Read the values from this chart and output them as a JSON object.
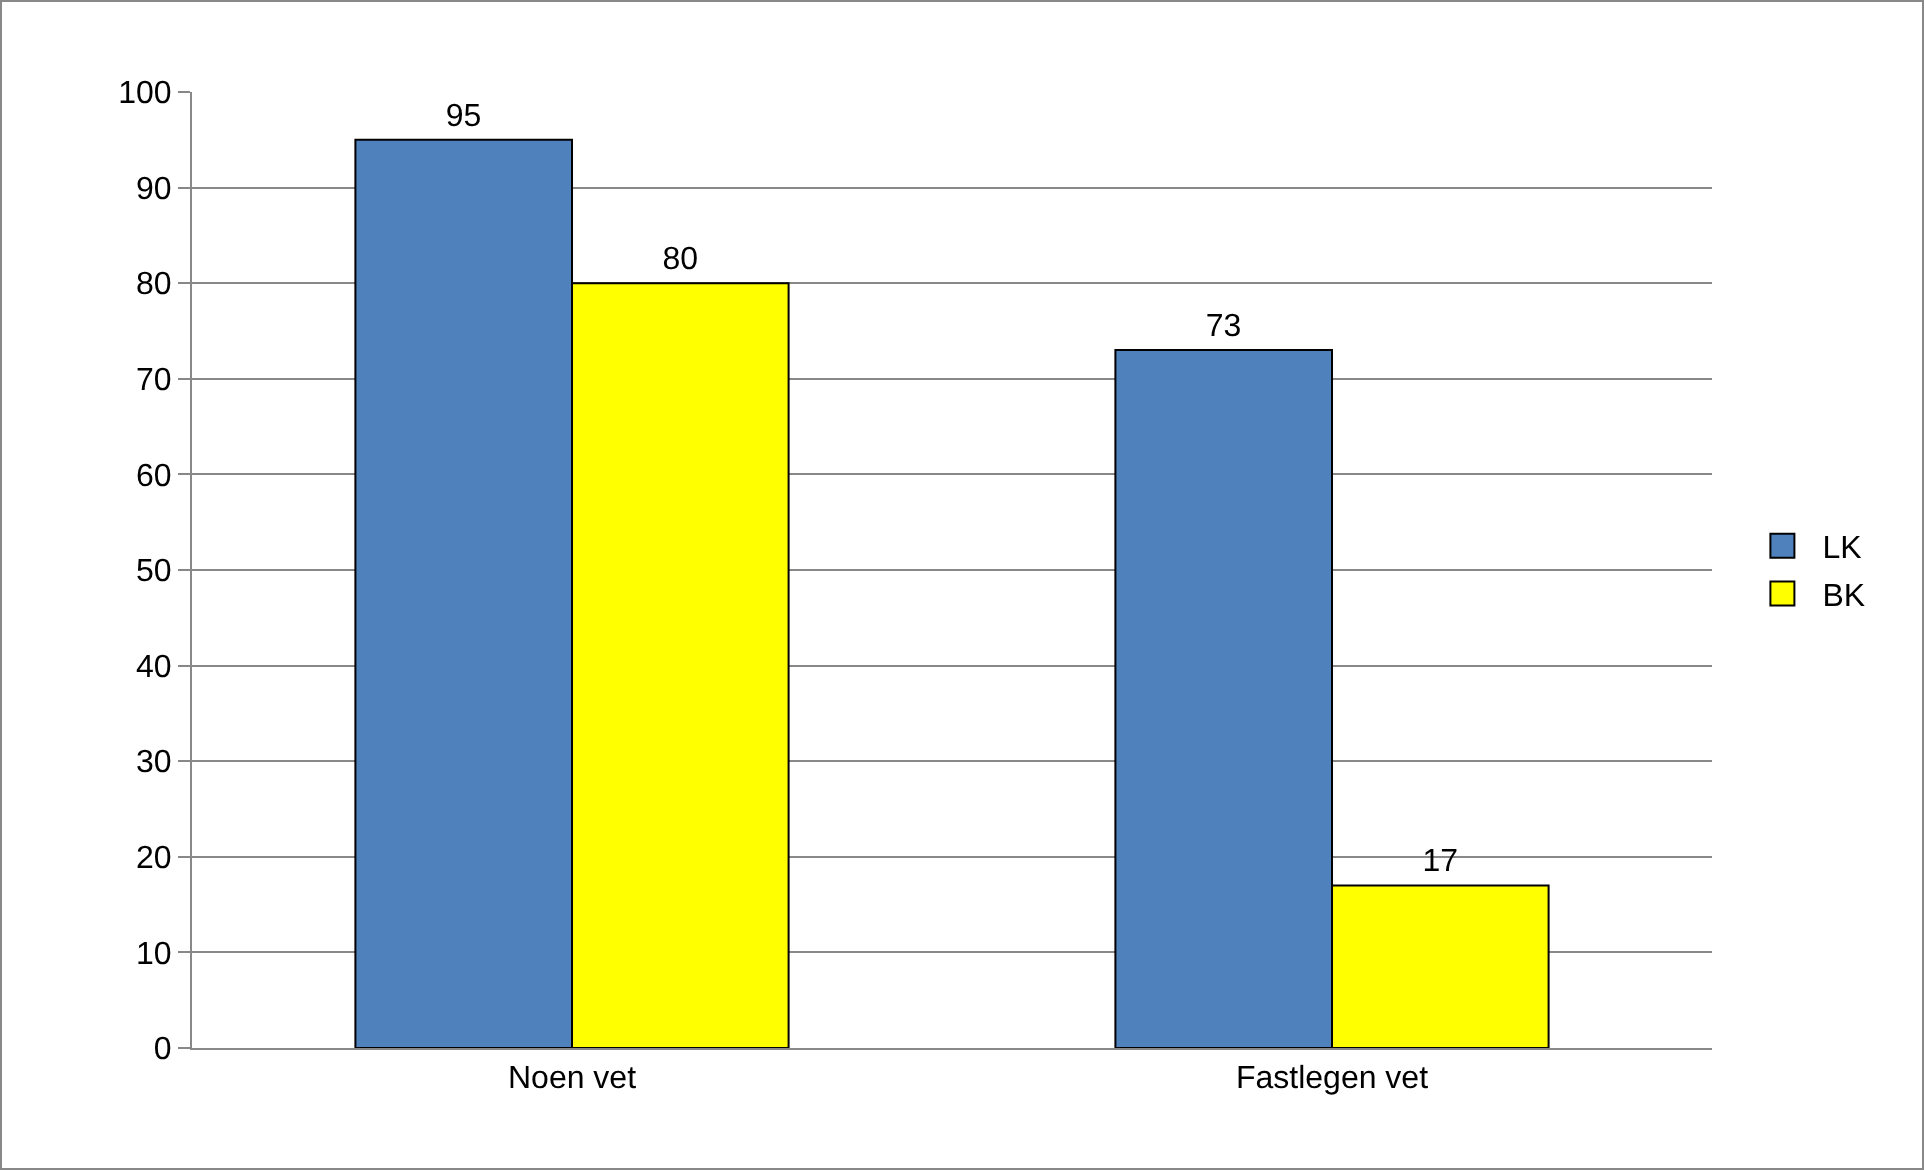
{
  "chart_data": {
    "type": "bar",
    "categories": [
      "Noen vet",
      "Fastlegen vet"
    ],
    "series": [
      {
        "name": "LK",
        "color": "#4f81bd",
        "values": [
          95,
          73
        ]
      },
      {
        "name": "BK",
        "color": "#ffff00",
        "values": [
          80,
          17
        ]
      }
    ],
    "ylim": [
      0,
      100
    ],
    "yticks": [
      0,
      10,
      20,
      30,
      40,
      50,
      60,
      70,
      80,
      90,
      100
    ],
    "grid": "y",
    "legend": "right",
    "data_labels": true
  }
}
